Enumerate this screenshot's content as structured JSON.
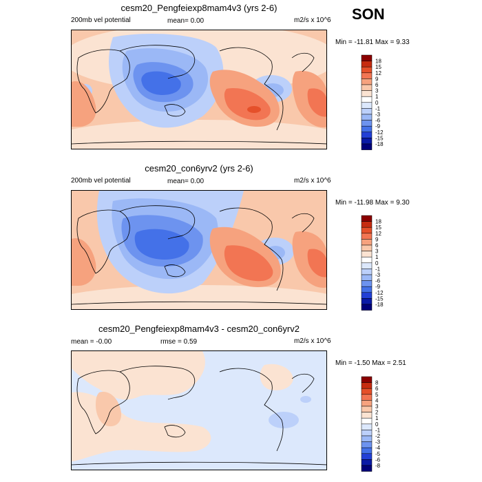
{
  "season": "SON",
  "chart_data": [
    {
      "type": "heatmap",
      "title": "cesm20_Pengfeiexp8mam4v3 (yrs 2-6)",
      "left_label": "200mb vel potential",
      "stat_label": "mean=  0.00",
      "units": "m2/s x 10^6",
      "minmax": "Min = -11.81 Max =  9.33",
      "levels": [
        "18",
        "15",
        "12",
        "9",
        "6",
        "3",
        "1",
        "0",
        "-1",
        "-3",
        "-6",
        "-9",
        "-12",
        "-15",
        "-18"
      ],
      "colors": [
        "#8b0000",
        "#c62c10",
        "#e5502a",
        "#f27553",
        "#f6a27e",
        "#f9c8ab",
        "#fbe3d2",
        "#ffffff",
        "#dce8fc",
        "#bcd0fa",
        "#9bb8f6",
        "#6d93ef",
        "#4471e8",
        "#2340d6",
        "#0a1aa6",
        "#00007a"
      ]
    },
    {
      "type": "heatmap",
      "title": "cesm20_con6yrv2 (yrs 2-6)",
      "left_label": "200mb vel potential",
      "stat_label": "mean=  0.00",
      "units": "m2/s x 10^6",
      "minmax": "Min = -11.98 Max =  9.30",
      "levels": [
        "18",
        "15",
        "12",
        "9",
        "6",
        "3",
        "1",
        "0",
        "-1",
        "-3",
        "-6",
        "-9",
        "-12",
        "-15",
        "-18"
      ],
      "colors": [
        "#8b0000",
        "#c62c10",
        "#e5502a",
        "#f27553",
        "#f6a27e",
        "#f9c8ab",
        "#fbe3d2",
        "#ffffff",
        "#dce8fc",
        "#bcd0fa",
        "#9bb8f6",
        "#6d93ef",
        "#4471e8",
        "#2340d6",
        "#0a1aa6",
        "#00007a"
      ]
    },
    {
      "type": "heatmap",
      "title": "cesm20_Pengfeiexp8mam4v3 - cesm20_con6yrv2",
      "left_label": "mean =  -0.00",
      "stat_label": "rmse =  0.59",
      "units": "m2/s x 10^6",
      "minmax": "Min = -1.50 Max =  2.51",
      "levels": [
        "8",
        "6",
        "5",
        "4",
        "3",
        "2",
        "1",
        "0",
        "-1",
        "-2",
        "-3",
        "-4",
        "-5",
        "-6",
        "-8"
      ],
      "colors": [
        "#8b0000",
        "#c62c10",
        "#e5502a",
        "#f27553",
        "#f6a27e",
        "#f9c8ab",
        "#fbe3d2",
        "#ffffff",
        "#dce8fc",
        "#bcd0fa",
        "#9bb8f6",
        "#6d93ef",
        "#4471e8",
        "#2340d6",
        "#0a1aa6",
        "#00007a"
      ]
    }
  ]
}
